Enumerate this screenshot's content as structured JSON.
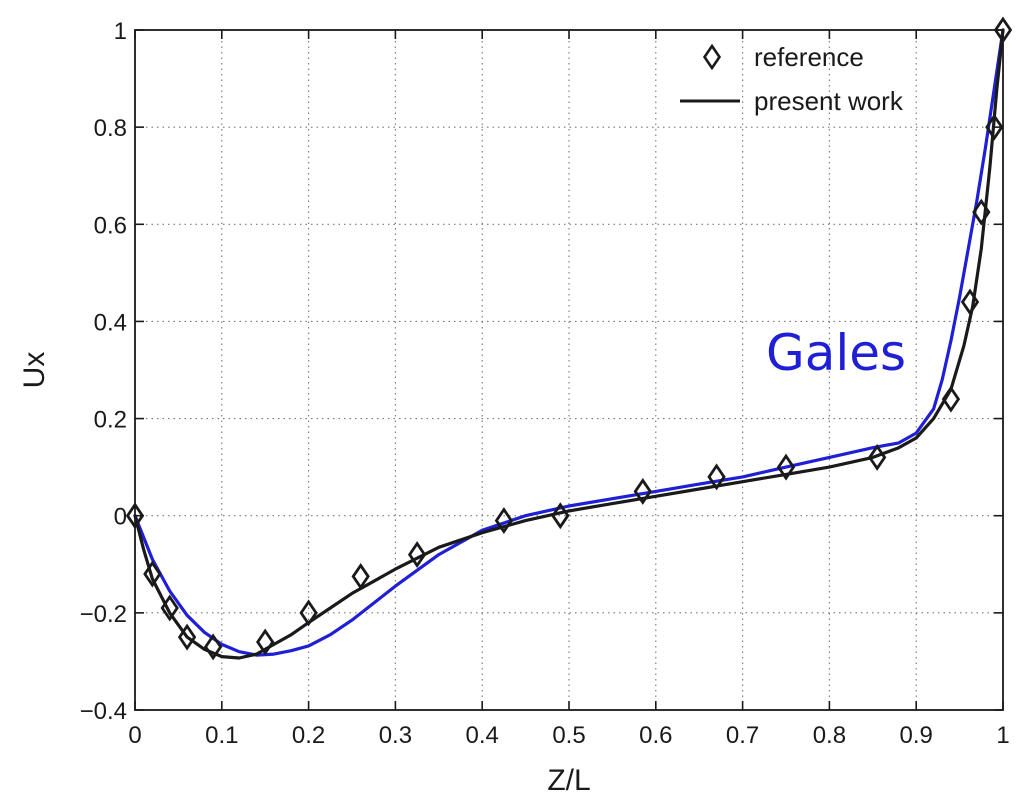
{
  "chart_data": {
    "type": "line",
    "title": "",
    "xlabel": "Z/L",
    "ylabel": "Ux",
    "xlim": [
      0,
      1
    ],
    "ylim": [
      -0.4,
      1
    ],
    "grid": true,
    "legend_position": "top-right",
    "x_ticks": [
      {
        "value": 0,
        "label": "0"
      },
      {
        "value": 0.1,
        "label": "0.1"
      },
      {
        "value": 0.2,
        "label": "0.2"
      },
      {
        "value": 0.3,
        "label": "0.3"
      },
      {
        "value": 0.4,
        "label": "0.4"
      },
      {
        "value": 0.5,
        "label": "0.5"
      },
      {
        "value": 0.6,
        "label": "0.6"
      },
      {
        "value": 0.7,
        "label": "0.7"
      },
      {
        "value": 0.8,
        "label": "0.8"
      },
      {
        "value": 0.9,
        "label": "0.9"
      },
      {
        "value": 1,
        "label": "1"
      }
    ],
    "y_ticks": [
      {
        "value": -0.4,
        "label": "−0.4"
      },
      {
        "value": -0.2,
        "label": "−0.2"
      },
      {
        "value": 0,
        "label": "0"
      },
      {
        "value": 0.2,
        "label": "0.2"
      },
      {
        "value": 0.4,
        "label": "0.4"
      },
      {
        "value": 0.6,
        "label": "0.6"
      },
      {
        "value": 0.8,
        "label": "0.8"
      },
      {
        "value": 1,
        "label": "1"
      }
    ],
    "series": [
      {
        "name": "reference",
        "style": "markers",
        "marker": "diamond",
        "color": "#1a1a1a",
        "x": [
          0.0,
          0.02,
          0.04,
          0.06,
          0.09,
          0.15,
          0.2,
          0.26,
          0.325,
          0.425,
          0.49,
          0.585,
          0.67,
          0.75,
          0.855,
          0.94,
          0.962,
          0.975,
          0.99,
          1.0
        ],
        "y": [
          0.0,
          -0.12,
          -0.19,
          -0.25,
          -0.27,
          -0.26,
          -0.2,
          -0.125,
          -0.08,
          -0.01,
          0.0,
          0.05,
          0.08,
          0.1,
          0.12,
          0.24,
          0.44,
          0.625,
          0.8,
          1.0
        ]
      },
      {
        "name": "present work",
        "style": "line",
        "color": "#1a1a1a",
        "x": [
          0.0,
          0.01,
          0.02,
          0.04,
          0.06,
          0.08,
          0.1,
          0.12,
          0.14,
          0.16,
          0.18,
          0.2,
          0.225,
          0.25,
          0.275,
          0.3,
          0.35,
          0.4,
          0.45,
          0.5,
          0.55,
          0.6,
          0.65,
          0.7,
          0.75,
          0.8,
          0.85,
          0.88,
          0.9,
          0.92,
          0.94,
          0.955,
          0.965,
          0.975,
          0.985,
          0.993,
          1.0
        ],
        "y": [
          0.0,
          -0.07,
          -0.13,
          -0.2,
          -0.25,
          -0.275,
          -0.29,
          -0.293,
          -0.285,
          -0.265,
          -0.245,
          -0.22,
          -0.19,
          -0.16,
          -0.135,
          -0.11,
          -0.065,
          -0.035,
          -0.01,
          0.01,
          0.025,
          0.04,
          0.055,
          0.07,
          0.085,
          0.1,
          0.12,
          0.14,
          0.16,
          0.2,
          0.26,
          0.35,
          0.43,
          0.55,
          0.72,
          0.88,
          1.0
        ]
      },
      {
        "name": "Gales",
        "style": "line",
        "color": "#1f1fd6",
        "x": [
          0.0,
          0.02,
          0.04,
          0.06,
          0.08,
          0.1,
          0.12,
          0.14,
          0.16,
          0.18,
          0.2,
          0.225,
          0.25,
          0.275,
          0.3,
          0.35,
          0.4,
          0.45,
          0.5,
          0.55,
          0.6,
          0.65,
          0.7,
          0.75,
          0.8,
          0.85,
          0.88,
          0.9,
          0.92,
          0.93,
          0.94,
          0.95,
          0.96,
          0.97,
          0.98,
          0.99,
          1.0
        ],
        "y": [
          0.0,
          -0.09,
          -0.155,
          -0.205,
          -0.24,
          -0.265,
          -0.28,
          -0.287,
          -0.285,
          -0.278,
          -0.268,
          -0.245,
          -0.215,
          -0.18,
          -0.145,
          -0.08,
          -0.03,
          0.0,
          0.02,
          0.035,
          0.05,
          0.065,
          0.08,
          0.1,
          0.12,
          0.14,
          0.15,
          0.17,
          0.22,
          0.28,
          0.36,
          0.45,
          0.55,
          0.65,
          0.76,
          0.88,
          1.0
        ]
      }
    ],
    "legend_entries": [
      {
        "label": "reference",
        "symbol": "diamond"
      },
      {
        "label": "present work",
        "symbol": "line"
      }
    ],
    "annotation": {
      "text": "Gales",
      "color": "#1f1fd6"
    }
  }
}
